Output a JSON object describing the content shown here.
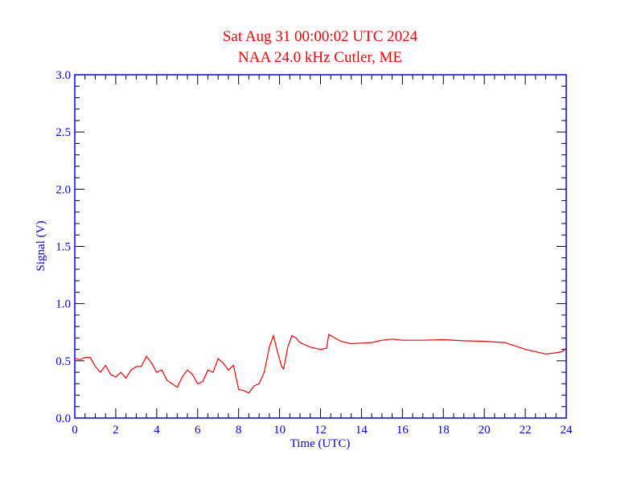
{
  "chart_data": {
    "type": "line",
    "title": "Sat Aug 31 00:00:02 UTC 2024",
    "subtitle": "NAA 24.0 kHz Cutler, ME",
    "xlabel": "Time (UTC)",
    "ylabel": "Signal (V)",
    "xlim": [
      0,
      24
    ],
    "ylim": [
      0,
      3.0
    ],
    "x_ticks": [
      "0",
      "2",
      "4",
      "6",
      "8",
      "10",
      "12",
      "14",
      "16",
      "18",
      "20",
      "22",
      "24"
    ],
    "y_ticks": [
      "0.0",
      "0.5",
      "1.0",
      "1.5",
      "2.0",
      "2.5",
      "3.0"
    ],
    "x_minor_step": 0.5,
    "y_minor_step": 0.1,
    "grid": false,
    "colors": {
      "title": "#ff0000",
      "axis": "#0000ff",
      "series": "#ff0000",
      "ticks": "#000000"
    },
    "series": [
      {
        "name": "Signal",
        "x": [
          0,
          0.25,
          0.5,
          0.75,
          1,
          1.25,
          1.5,
          1.75,
          2,
          2.25,
          2.5,
          2.75,
          3,
          3.25,
          3.5,
          3.75,
          4,
          4.25,
          4.5,
          4.75,
          5,
          5.25,
          5.5,
          5.75,
          6,
          6.25,
          6.5,
          6.75,
          7,
          7.25,
          7.5,
          7.75,
          8,
          8.25,
          8.5,
          8.75,
          9,
          9.25,
          9.5,
          9.7,
          9.9,
          10.1,
          10.2,
          10.4,
          10.6,
          10.8,
          11,
          11.5,
          12,
          12.3,
          12.4,
          12.6,
          13,
          13.5,
          14,
          14.5,
          15,
          15.5,
          16,
          17,
          18,
          19,
          20,
          21,
          21.5,
          22,
          22.5,
          23,
          23.5,
          23.8,
          24
        ],
        "y": [
          0.52,
          0.51,
          0.53,
          0.53,
          0.45,
          0.4,
          0.46,
          0.38,
          0.36,
          0.4,
          0.35,
          0.42,
          0.45,
          0.45,
          0.54,
          0.48,
          0.4,
          0.42,
          0.33,
          0.3,
          0.27,
          0.36,
          0.42,
          0.38,
          0.3,
          0.32,
          0.42,
          0.4,
          0.52,
          0.48,
          0.42,
          0.46,
          0.25,
          0.24,
          0.22,
          0.28,
          0.3,
          0.4,
          0.62,
          0.72,
          0.58,
          0.45,
          0.43,
          0.62,
          0.72,
          0.7,
          0.66,
          0.62,
          0.6,
          0.61,
          0.73,
          0.71,
          0.67,
          0.65,
          0.655,
          0.66,
          0.68,
          0.69,
          0.68,
          0.68,
          0.685,
          0.675,
          0.67,
          0.66,
          0.63,
          0.6,
          0.58,
          0.56,
          0.57,
          0.58,
          0.61
        ]
      }
    ]
  }
}
